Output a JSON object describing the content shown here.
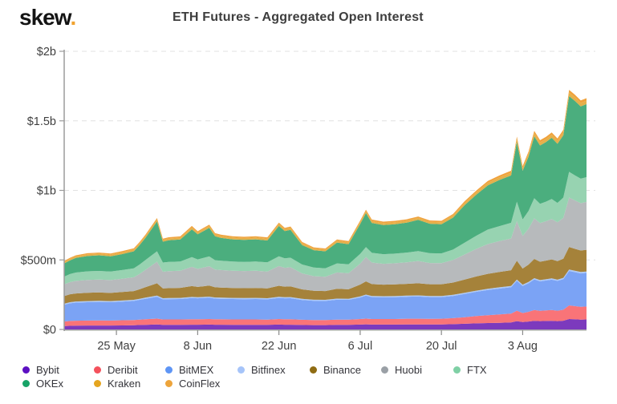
{
  "header": {
    "logo_text": "skew",
    "logo_dot": ".",
    "logo_dot_color": "#f0a22e",
    "title": "ETH Futures - Aggregated Open Interest"
  },
  "chart_data": {
    "type": "area",
    "stacked": true,
    "title": "ETH Futures - Aggregated Open Interest",
    "xlabel": "",
    "ylabel": "",
    "unit": "$m",
    "ylim": [
      0,
      2000
    ],
    "grid": "dashed-horizontal",
    "legend_position": "bottom",
    "x_days": [
      0,
      1,
      2,
      4,
      6,
      8,
      10,
      12,
      13,
      14,
      16,
      17,
      18,
      20,
      22,
      23,
      25,
      26,
      27,
      29,
      31,
      33,
      35,
      37,
      38,
      39,
      41,
      43,
      45,
      47,
      49,
      51,
      52,
      53,
      55,
      57,
      59,
      61,
      63,
      65,
      67,
      69,
      71,
      73,
      75,
      77,
      78,
      79,
      80,
      81,
      82,
      83,
      84,
      85,
      86,
      87,
      88,
      89,
      90
    ],
    "x_ticks": {
      "labels": [
        "25 May",
        "8 Jun",
        "22 Jun",
        "6 Jul",
        "20 Jul",
        "3 Aug"
      ],
      "days": [
        9,
        23,
        37,
        51,
        65,
        79
      ]
    },
    "y_ticks": [
      {
        "label": "$0",
        "value": 0
      },
      {
        "label": "$500m",
        "value": 500
      },
      {
        "label": "$1b",
        "value": 1000
      },
      {
        "label": "$1.5b",
        "value": 1500
      },
      {
        "label": "$2b",
        "value": 2000
      }
    ],
    "series": [
      {
        "name": "Bybit",
        "dot": "#5c10c2",
        "fill": "#7c3abd",
        "values": [
          24,
          26,
          27,
          28,
          28,
          28,
          29,
          30,
          32,
          33,
          36,
          33,
          33,
          33,
          34,
          34,
          35,
          34,
          34,
          33,
          33,
          33,
          33,
          35,
          34,
          34,
          32,
          31,
          31,
          33,
          33,
          35,
          37,
          35,
          35,
          35,
          36,
          36,
          36,
          36,
          38,
          41,
          44,
          46,
          48,
          51,
          60,
          53,
          57,
          62,
          60,
          61,
          62,
          60,
          63,
          75,
          73,
          71,
          72
        ]
      },
      {
        "name": "Deribit",
        "dot": "#f4515c",
        "fill": "#f97478",
        "values": [
          33,
          35,
          36,
          36,
          37,
          36,
          37,
          38,
          39,
          40,
          42,
          39,
          39,
          39,
          40,
          40,
          40,
          39,
          39,
          39,
          39,
          39,
          38,
          40,
          40,
          40,
          38,
          37,
          37,
          38,
          38,
          40,
          41,
          40,
          40,
          40,
          41,
          41,
          40,
          41,
          43,
          47,
          52,
          56,
          60,
          63,
          75,
          65,
          70,
          78,
          74,
          76,
          78,
          75,
          79,
          98,
          95,
          92,
          93
        ]
      },
      {
        "name": "BitMEX",
        "dot": "#5e95f5",
        "fill": "#7ba3f5",
        "values": [
          120,
          127,
          130,
          132,
          133,
          132,
          134,
          137,
          142,
          148,
          158,
          145,
          146,
          147,
          152,
          150,
          153,
          149,
          148,
          147,
          146,
          147,
          146,
          152,
          150,
          151,
          142,
          138,
          137,
          143,
          142,
          155,
          165,
          158,
          156,
          157,
          158,
          160,
          157,
          156,
          160,
          168,
          175,
          182,
          186,
          190,
          215,
          195,
          205,
          220,
          212,
          215,
          218,
          214,
          220,
          248,
          244,
          240,
          242
        ]
      },
      {
        "name": "Bitfinex",
        "dot": "#a6c4f9",
        "fill": "#abc8f7",
        "values": [
          8,
          8,
          8,
          8,
          8,
          8,
          8,
          8,
          8,
          8,
          8,
          8,
          8,
          8,
          8,
          8,
          8,
          8,
          8,
          8,
          8,
          8,
          8,
          8,
          8,
          8,
          8,
          8,
          8,
          8,
          8,
          8,
          8,
          8,
          8,
          8,
          8,
          8,
          8,
          8,
          8,
          8,
          8,
          9,
          9,
          9,
          9,
          9,
          9,
          9,
          9,
          9,
          9,
          9,
          9,
          10,
          10,
          10,
          10
        ]
      },
      {
        "name": "Binance",
        "dot": "#8f6c13",
        "fill": "#a5823a",
        "values": [
          55,
          57,
          58,
          60,
          60,
          59,
          61,
          63,
          68,
          75,
          88,
          70,
          71,
          72,
          78,
          74,
          79,
          73,
          72,
          71,
          71,
          71,
          70,
          79,
          76,
          77,
          68,
          64,
          63,
          70,
          68,
          85,
          95,
          85,
          83,
          84,
          85,
          87,
          84,
          84,
          88,
          95,
          102,
          107,
          110,
          113,
          135,
          116,
          125,
          138,
          132,
          134,
          137,
          133,
          138,
          162,
          158,
          155,
          156
        ]
      },
      {
        "name": "Huobi",
        "dot": "#9aa0a6",
        "fill": "#b7babc",
        "values": [
          85,
          87,
          90,
          92,
          93,
          92,
          95,
          99,
          110,
          125,
          155,
          120,
          122,
          123,
          138,
          130,
          140,
          128,
          126,
          124,
          123,
          124,
          122,
          142,
          135,
          137,
          115,
          105,
          103,
          118,
          115,
          150,
          175,
          155,
          150,
          152,
          155,
          160,
          153,
          152,
          162,
          180,
          198,
          214,
          222,
          228,
          285,
          235,
          258,
          292,
          278,
          283,
          290,
          280,
          293,
          355,
          348,
          340,
          344
        ]
      },
      {
        "name": "FTX",
        "dot": "#7fd0a5",
        "fill": "#97d3b1",
        "values": [
          55,
          58,
          60,
          62,
          62,
          61,
          63,
          65,
          68,
          70,
          75,
          66,
          67,
          67,
          70,
          68,
          70,
          67,
          67,
          66,
          66,
          66,
          66,
          70,
          69,
          69,
          64,
          62,
          61,
          65,
          64,
          70,
          71,
          70,
          69,
          69,
          70,
          71,
          70,
          70,
          75,
          85,
          95,
          104,
          108,
          113,
          140,
          118,
          128,
          145,
          138,
          141,
          144,
          139,
          146,
          185,
          180,
          176,
          178
        ]
      },
      {
        "name": "OKEx",
        "dot": "#17a367",
        "fill": "#4bae7e",
        "values": [
          95,
          98,
          105,
          110,
          112,
          110,
          115,
          122,
          140,
          160,
          215,
          150,
          155,
          158,
          200,
          180,
          205,
          172,
          165,
          160,
          158,
          160,
          157,
          218,
          195,
          200,
          140,
          125,
          122,
          150,
          145,
          215,
          245,
          215,
          210,
          212,
          215,
          225,
          212,
          210,
          230,
          270,
          295,
          318,
          332,
          340,
          430,
          350,
          390,
          445,
          420,
          428,
          440,
          425,
          448,
          545,
          535,
          520,
          525
        ]
      },
      {
        "name": "Kraken",
        "dot": "#e5a51f",
        "fill": "#e4b04a",
        "values": [
          11,
          12,
          12,
          12,
          12,
          12,
          13,
          13,
          13,
          14,
          14,
          13,
          13,
          13,
          14,
          13,
          14,
          13,
          13,
          13,
          13,
          13,
          13,
          14,
          14,
          14,
          13,
          12,
          12,
          13,
          13,
          14,
          14,
          14,
          14,
          14,
          14,
          14,
          14,
          14,
          15,
          16,
          17,
          18,
          18,
          19,
          21,
          19,
          20,
          22,
          21,
          21,
          22,
          21,
          22,
          25,
          25,
          24,
          24
        ]
      },
      {
        "name": "CoinFlex",
        "dot": "#eda43b",
        "fill": "#f0a23c",
        "values": [
          7,
          7,
          7,
          8,
          8,
          8,
          8,
          8,
          9,
          9,
          10,
          9,
          9,
          9,
          10,
          9,
          10,
          9,
          9,
          9,
          9,
          9,
          9,
          10,
          10,
          10,
          9,
          8,
          8,
          9,
          9,
          10,
          10,
          10,
          10,
          10,
          10,
          10,
          10,
          10,
          11,
          12,
          13,
          14,
          14,
          15,
          17,
          15,
          16,
          17,
          17,
          17,
          17,
          17,
          18,
          20,
          20,
          19,
          19
        ]
      }
    ],
    "legend_rows": [
      [
        0,
        1,
        2,
        3,
        4,
        5,
        6
      ],
      [
        7,
        8,
        9
      ]
    ]
  }
}
